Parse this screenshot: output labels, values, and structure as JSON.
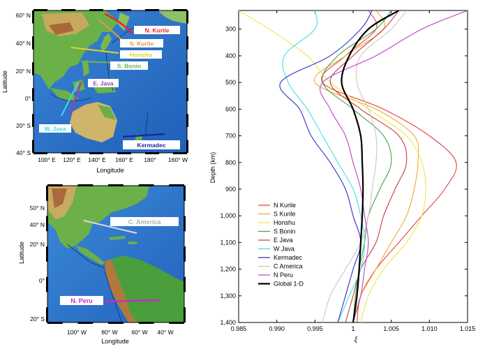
{
  "map_top": {
    "lat_label": "Latitude",
    "lon_label": "Longitude",
    "lat_ticks": [
      "60° N",
      "40° N",
      "20° N",
      "0°",
      "20° S",
      "40° S"
    ],
    "lon_ticks": [
      "100° E",
      "120° E",
      "140° E",
      "160° E",
      "180°",
      "160° W"
    ],
    "regions": [
      {
        "name": "N. Kurile",
        "color": "#e8222a"
      },
      {
        "name": "S. Kurile",
        "color": "#e89a3c"
      },
      {
        "name": "Honshu",
        "color": "#e6d21e"
      },
      {
        "name": "S. Bonin",
        "color": "#6fb648"
      },
      {
        "name": "E. Java",
        "color": "#9b3fb0"
      },
      {
        "name": "W. Java",
        "color": "#3fd7e6"
      },
      {
        "name": "Kermadec",
        "color": "#1a2a9e"
      }
    ]
  },
  "map_bottom": {
    "lat_label": "Latitude",
    "lon_label": "Longitude",
    "lat_ticks": [
      "40° N",
      "20° N",
      "0°",
      "20° S"
    ],
    "lat_ticks_top": "50° N",
    "lon_ticks": [
      "100° W",
      "80° W",
      "60° W",
      "40° W"
    ],
    "regions": [
      {
        "name": "C. America",
        "color": "#d0d0d0"
      },
      {
        "name": "N. Peru",
        "color": "#c030c0"
      }
    ]
  },
  "chart_data": {
    "type": "line",
    "xlabel": "ξ",
    "ylabel": "Depth (km)",
    "xlim": [
      0.985,
      1.015
    ],
    "ylim": [
      1400,
      230
    ],
    "x_ticks": [
      "0.985",
      "0.990",
      "0.995",
      "1",
      "1.005",
      "1.010",
      "1.015"
    ],
    "y_ticks": [
      "300",
      "400",
      "500",
      "600",
      "700",
      "800",
      "900",
      "1,000",
      "1,100",
      "1,200",
      "1,300",
      "1,400"
    ],
    "depth": [
      230,
      300,
      400,
      500,
      600,
      700,
      800,
      900,
      1000,
      1100,
      1200,
      1300,
      1400
    ],
    "series": [
      {
        "name": "N Kurile",
        "color": "#e84040",
        "values": [
          1.002,
          1.003,
          0.999,
          0.996,
          1.004,
          1.01,
          1.0135,
          1.012,
          1.009,
          1.006,
          1.003,
          1.001,
          1.0005
        ]
      },
      {
        "name": "S Kurile",
        "color": "#f0a830",
        "values": [
          1.003,
          1.004,
          0.999,
          0.995,
          1.003,
          1.008,
          1.0085,
          1.008,
          1.007,
          1.005,
          1.003,
          1.001,
          1.0
        ]
      },
      {
        "name": "Honshu",
        "color": "#f2e640",
        "values": [
          0.985,
          0.989,
          0.994,
          0.997,
          1.002,
          1.007,
          1.009,
          1.0095,
          1.009,
          1.007,
          1.004,
          1.002,
          1.001
        ]
      },
      {
        "name": "S Bonin",
        "color": "#4aa04a",
        "values": [
          1.005,
          1.003,
          0.998,
          0.996,
          1.0,
          1.004,
          1.005,
          1.0035,
          1.002,
          1.0015,
          1.0008,
          1.0003,
          1.0
        ]
      },
      {
        "name": "E Java",
        "color": "#c04040",
        "values": [
          1.006,
          1.004,
          1.0,
          0.997,
          1.001,
          1.006,
          1.007,
          1.0055,
          1.004,
          1.003,
          1.001,
          1.0,
          0.999
        ]
      },
      {
        "name": "W Java",
        "color": "#40e0e8",
        "values": [
          0.995,
          0.995,
          0.991,
          0.9915,
          0.994,
          0.996,
          0.998,
          1.0,
          1.001,
          1.0015,
          1.001,
          0.9995,
          0.998
        ]
      },
      {
        "name": "Kermadec",
        "color": "#3030c8",
        "values": [
          1.0025,
          1.001,
          0.997,
          0.9905,
          0.993,
          0.9945,
          0.997,
          0.999,
          1.0,
          1.001,
          1.0,
          0.999,
          0.998
        ]
      },
      {
        "name": "C America",
        "color": "#c8c8c8",
        "values": [
          1.007,
          1.005,
          1.001,
          1.0005,
          1.002,
          1.003,
          1.003,
          1.0025,
          1.002,
          1.001,
          0.999,
          0.997,
          0.996
        ]
      },
      {
        "name": "N Peru",
        "color": "#c040c8",
        "values": [
          1.015,
          1.009,
          1.003,
          0.996,
          0.997,
          0.999,
          1.0,
          1.001,
          1.0015,
          1.002,
          1.0015,
          1.001,
          1.0
        ]
      },
      {
        "name": "Global 1-D",
        "color": "#000000",
        "values": [
          1.006,
          1.002,
          0.9995,
          0.9985,
          1.0,
          1.001,
          1.0012,
          1.0013,
          1.0012,
          1.001,
          1.0008,
          1.0005,
          1.0
        ]
      }
    ]
  }
}
